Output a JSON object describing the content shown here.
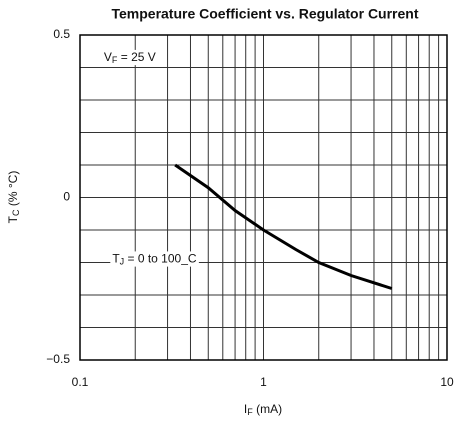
{
  "chart_data": {
    "type": "line",
    "title": "Temperature Coefficient vs. Regulator Current",
    "x_label": {
      "main": "I",
      "sub": "F",
      "rest": " (mA)"
    },
    "y_label": {
      "main": "T",
      "sub": "C",
      "rest": " (% °C)"
    },
    "xscale": "log",
    "xlim": [
      0.1,
      10
    ],
    "xticks": [
      0.1,
      1,
      10
    ],
    "xminor": [
      0.2,
      0.3,
      0.4,
      0.5,
      0.6,
      0.7,
      0.8,
      0.9,
      2,
      3,
      4,
      5,
      6,
      7,
      8,
      9
    ],
    "ylim": [
      -0.5,
      0.5
    ],
    "yticks": [
      {
        "value": -0.5,
        "label": "−0.5"
      },
      0,
      0.5
    ],
    "yminor": [
      -0.4,
      -0.3,
      -0.2,
      -0.1,
      0.1,
      0.2,
      0.3,
      0.4
    ],
    "grid": true,
    "annotations": [
      {
        "main": "V",
        "sub": "F",
        "rest": " = 25 V",
        "x": 0.135,
        "y": 0.43
      },
      {
        "main": "T",
        "sub": "J",
        "rest": " = 0 to 100_C",
        "x": 0.15,
        "y": -0.19
      }
    ],
    "series": [
      {
        "color": "#000000",
        "x": [
          0.33,
          0.5,
          0.7,
          1,
          1.5,
          2,
          3,
          5
        ],
        "values": [
          0.1,
          0.03,
          -0.04,
          -0.1,
          -0.16,
          -0.2,
          -0.24,
          -0.28
        ]
      }
    ]
  }
}
